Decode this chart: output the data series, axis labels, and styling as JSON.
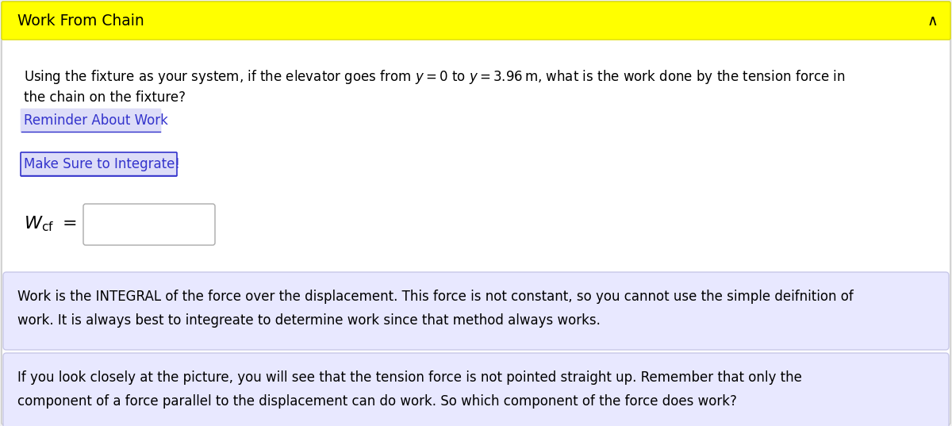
{
  "title": "Work From Chain",
  "title_bg": "#FFFF00",
  "title_color": "#000000",
  "title_fontsize": 13.5,
  "caret": "∧",
  "body_bg": "#FFFFFF",
  "fig_bg": "#F0F0F0",
  "question_line1_a": "Using the fixture as your system, if the elevator goes from ",
  "question_line1_math1": "$y = 0$",
  "question_line1_b": " to ",
  "question_line1_math2": "$y = 3.96\\,\\mathrm{m}$",
  "question_line1_c": ", what is the work done by the tension force in",
  "question_line2": "the chain on the fixture?",
  "link1": "Reminder About Work",
  "link2": "Make Sure to Integrate!",
  "link_color": "#3333CC",
  "link1_bg": "#DDDDF8",
  "link2_bg": "#DDDDF8",
  "link2_border": "#3333CC",
  "wcf_label": "$W_{\\mathrm{cf}}$",
  "hint1_text1": "Work is the INTEGRAL of the force over the displacement. This force is not constant, so you cannot use the simple deifnition of",
  "hint1_text2": "work. It is always best to integreate to determine work since that method always works.",
  "hint2_text1": "If you look closely at the picture, you will see that the tension force is not pointed straight up. Remember that only the",
  "hint2_text2": "component of a force parallel to the displacement can do work. So which component of the force does work?",
  "hint_bg": "#E8E8FF",
  "hint_border": "#C8C8E8",
  "text_color": "#000000",
  "text_fontsize": 12.0,
  "outer_border_color": "#CCCCCC",
  "fig_width": 12.0,
  "fig_height": 5.37
}
